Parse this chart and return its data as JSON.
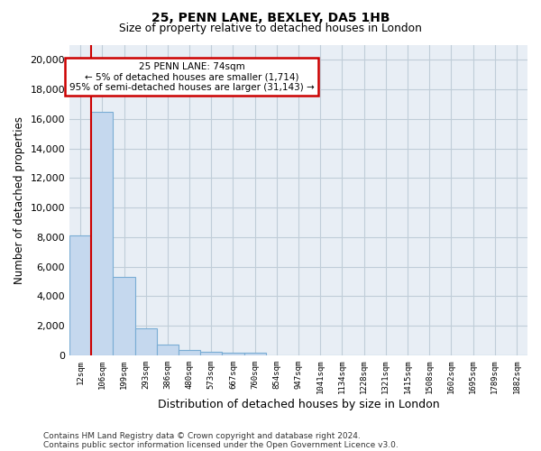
{
  "title1": "25, PENN LANE, BEXLEY, DA5 1HB",
  "title2": "Size of property relative to detached houses in London",
  "xlabel": "Distribution of detached houses by size in London",
  "ylabel": "Number of detached properties",
  "categories": [
    "12sqm",
    "106sqm",
    "199sqm",
    "293sqm",
    "386sqm",
    "480sqm",
    "573sqm",
    "667sqm",
    "760sqm",
    "854sqm",
    "947sqm",
    "1041sqm",
    "1134sqm",
    "1228sqm",
    "1321sqm",
    "1415sqm",
    "1508sqm",
    "1602sqm",
    "1695sqm",
    "1789sqm",
    "1882sqm"
  ],
  "values": [
    8100,
    16500,
    5300,
    1850,
    750,
    350,
    270,
    210,
    170,
    0,
    0,
    0,
    0,
    0,
    0,
    0,
    0,
    0,
    0,
    0,
    0
  ],
  "bar_color": "#c5d8ee",
  "bar_edge_color": "#7aadd4",
  "annotation_box_color": "#ffffff",
  "annotation_border_color": "#cc0000",
  "annotation_line_color": "#cc0000",
  "annotation_title": "25 PENN LANE: 74sqm",
  "annotation_line1": "← 5% of detached houses are smaller (1,714)",
  "annotation_line2": "95% of semi-detached houses are larger (31,143) →",
  "ylim": [
    0,
    21000
  ],
  "yticks": [
    0,
    2000,
    4000,
    6000,
    8000,
    10000,
    12000,
    14000,
    16000,
    18000,
    20000
  ],
  "footer1": "Contains HM Land Registry data © Crown copyright and database right 2024.",
  "footer2": "Contains public sector information licensed under the Open Government Licence v3.0.",
  "bg_color": "#ffffff",
  "plot_bg_color": "#e8eef5",
  "grid_color": "#c0cdd8"
}
